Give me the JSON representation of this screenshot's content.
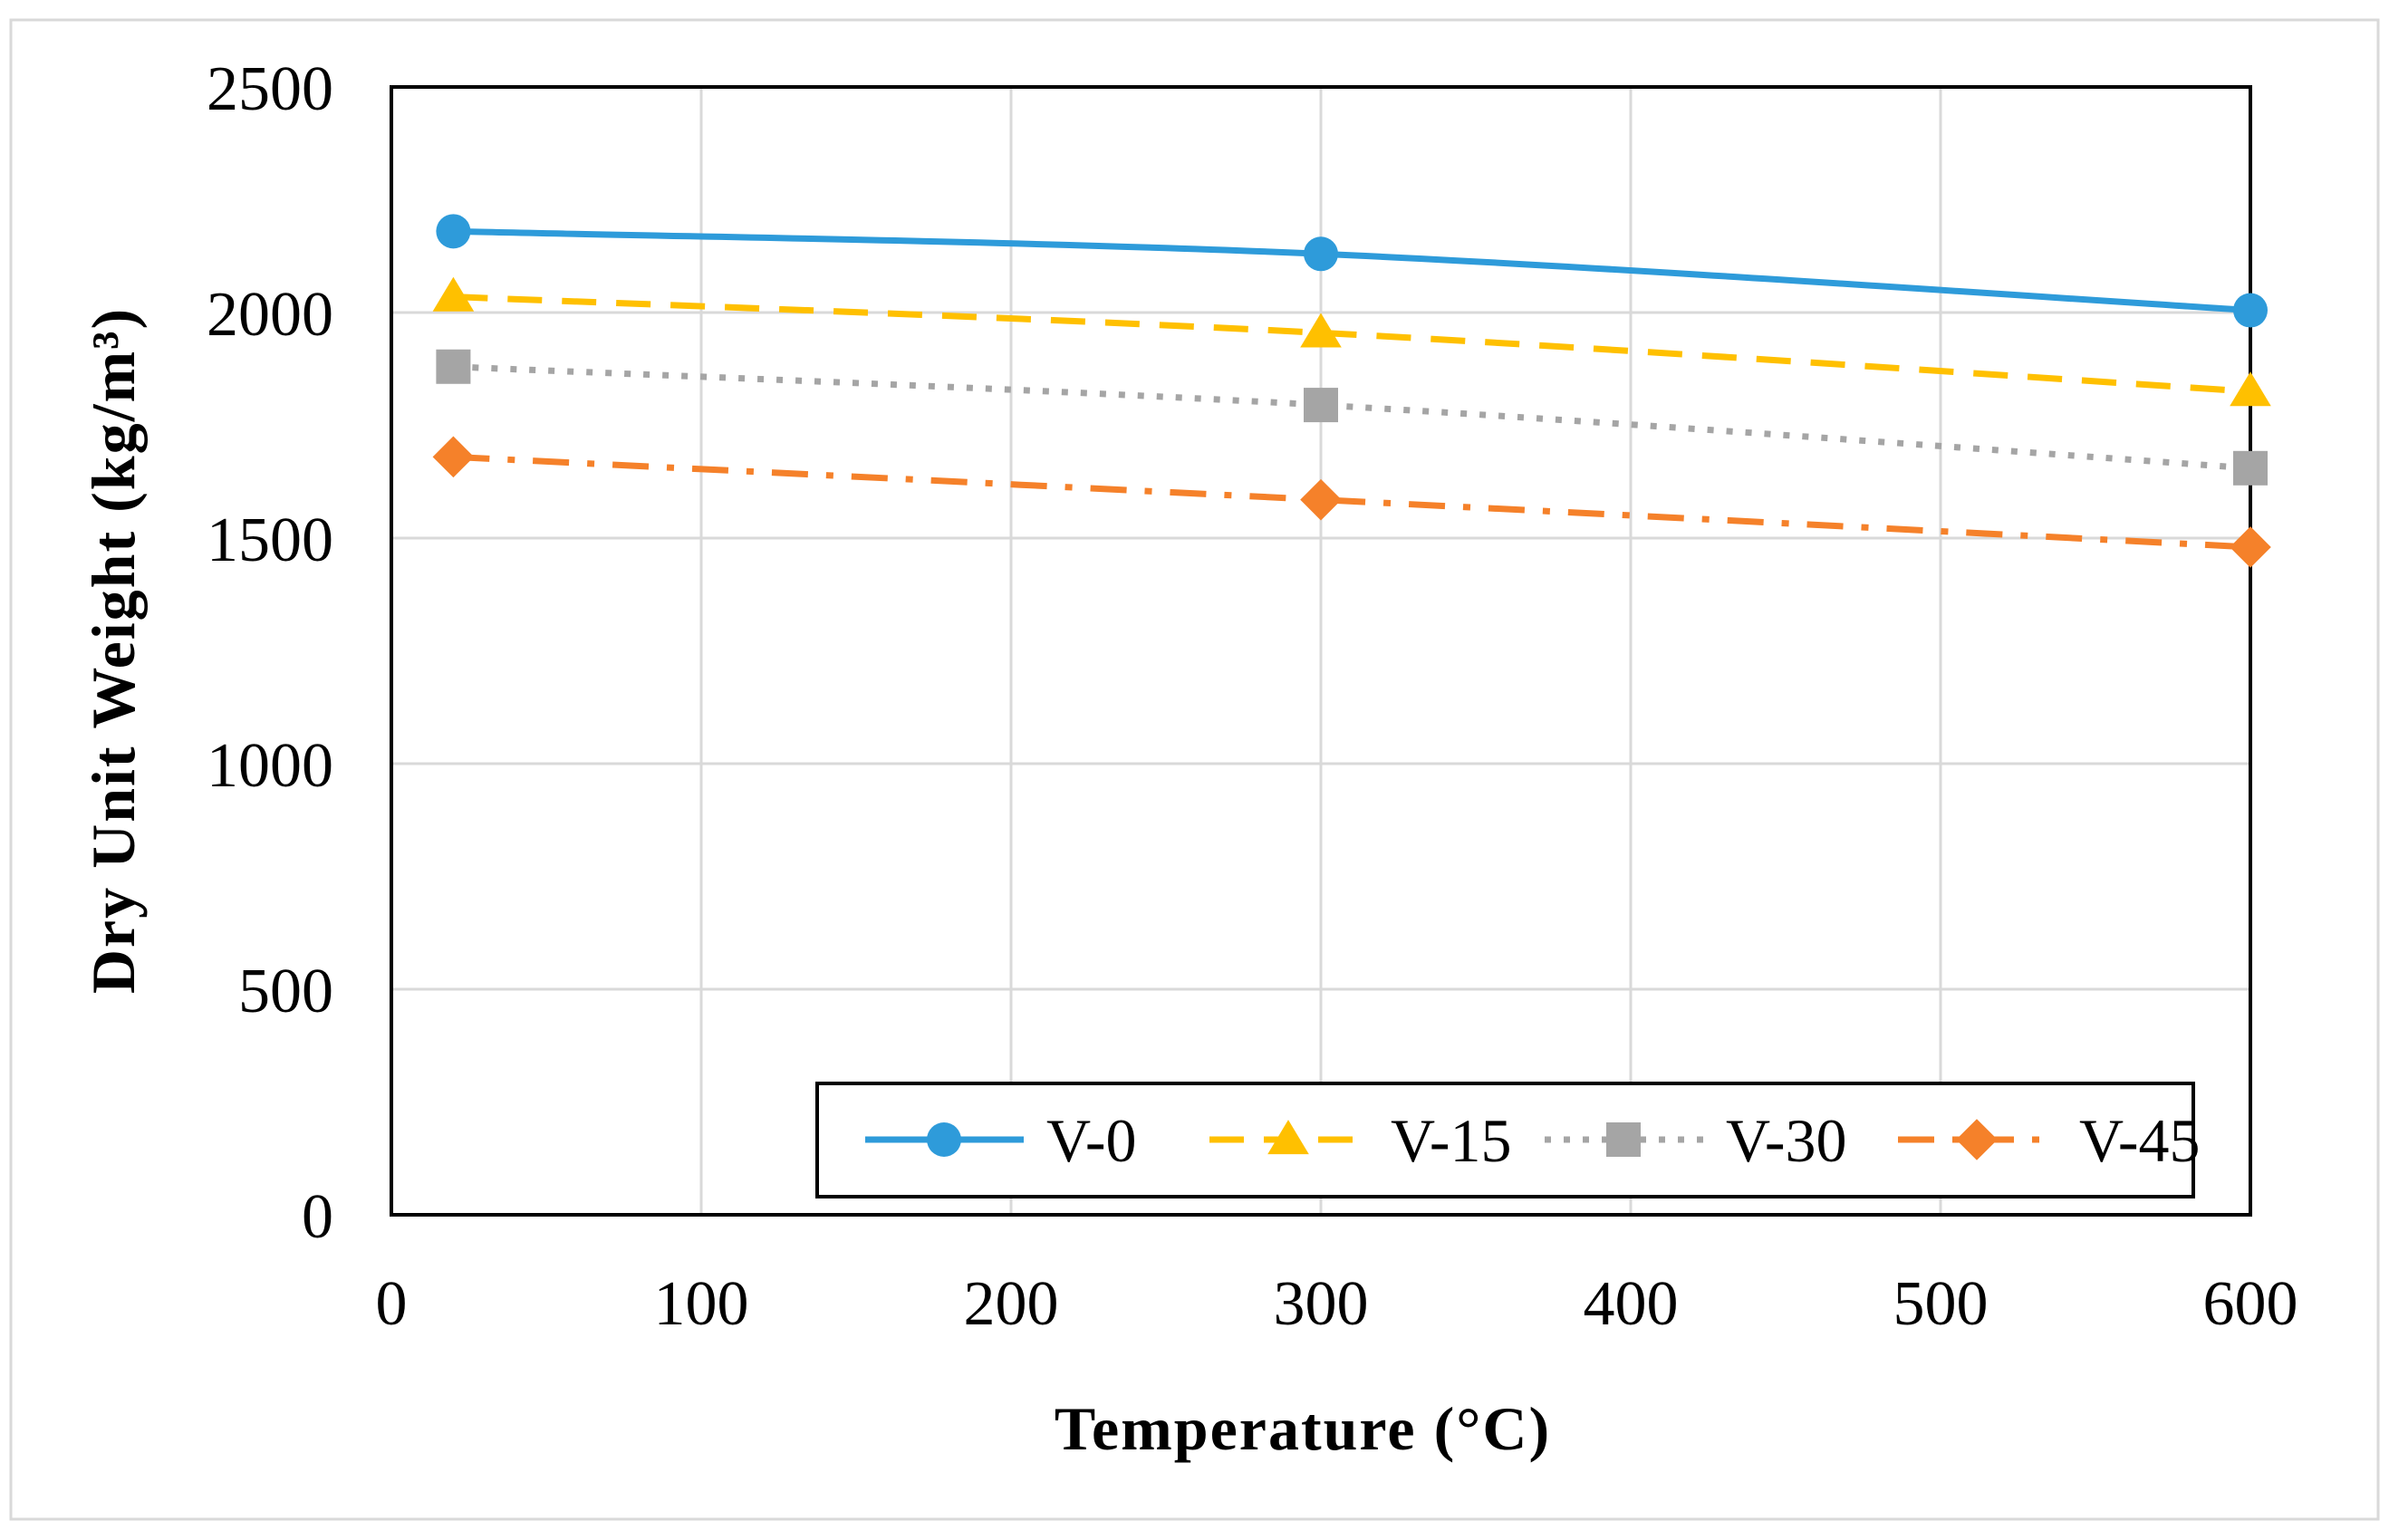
{
  "chart_data": {
    "type": "line",
    "title": "",
    "xlabel": "Temperature (°C)",
    "ylabel": "Dry Unit Weight (kg/m³)",
    "x": [
      20,
      300,
      600
    ],
    "xlim": [
      0,
      600
    ],
    "ylim": [
      0,
      2500
    ],
    "xticks": [
      0,
      100,
      200,
      300,
      400,
      500,
      600
    ],
    "yticks": [
      0,
      500,
      1000,
      1500,
      2000,
      2500
    ],
    "grid": true,
    "legend_position": "bottom-right inside",
    "series": [
      {
        "name": "V-0",
        "values": [
          2180,
          2130,
          2005
        ],
        "color": "#2E9BDA",
        "line": "solid",
        "marker": "circle"
      },
      {
        "name": "V-15",
        "values": [
          2035,
          1955,
          1825
        ],
        "color": "#FFC000",
        "line": "dashed",
        "marker": "triangle"
      },
      {
        "name": "V-30",
        "values": [
          1880,
          1795,
          1655
        ],
        "color": "#A5A5A5",
        "line": "dotted",
        "marker": "square"
      },
      {
        "name": "V-45",
        "values": [
          1680,
          1585,
          1480
        ],
        "color": "#F5812A",
        "line": "dashdot",
        "marker": "diamond"
      }
    ]
  }
}
